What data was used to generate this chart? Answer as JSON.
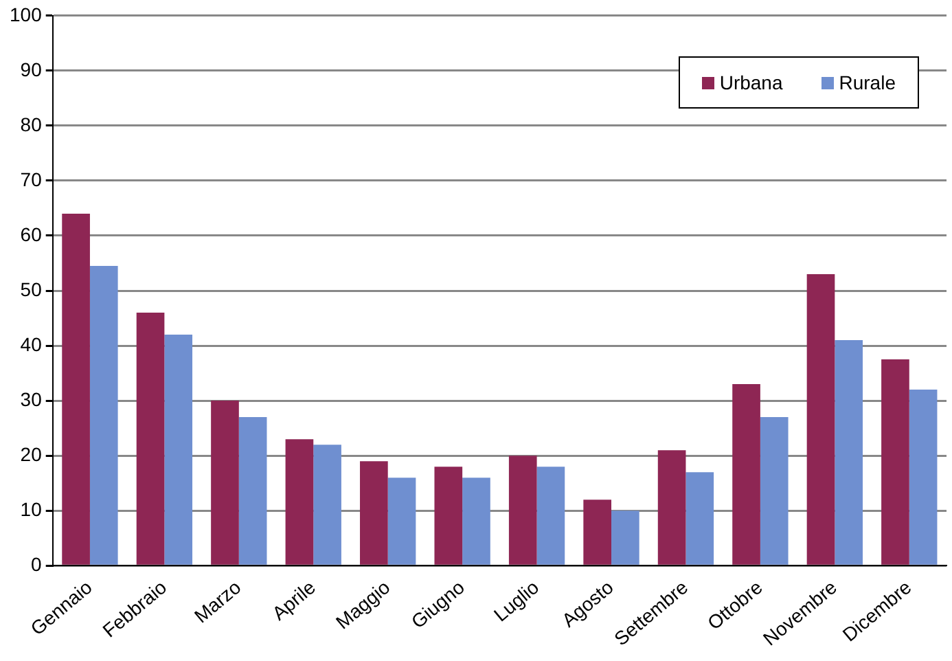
{
  "chart_data": {
    "type": "bar",
    "categories": [
      "Gennaio",
      "Febbraio",
      "Marzo",
      "Aprile",
      "Maggio",
      "Giugno",
      "Luglio",
      "Agosto",
      "Settembre",
      "Ottobre",
      "Novembre",
      "Dicembre"
    ],
    "series": [
      {
        "name": "Urbana",
        "color": "#8e2654",
        "values": [
          64,
          46,
          30,
          23,
          19,
          18,
          20,
          12,
          21,
          33,
          53,
          37.5
        ]
      },
      {
        "name": "Rurale",
        "color": "#6f8fd0",
        "values": [
          54.5,
          42,
          27,
          22,
          16,
          16,
          18,
          10,
          17,
          27,
          41,
          32
        ]
      }
    ],
    "ylim": [
      0,
      100
    ],
    "yticks": [
      0,
      10,
      20,
      30,
      40,
      50,
      60,
      70,
      80,
      90,
      100
    ],
    "grid": "y",
    "legend": "top right"
  }
}
